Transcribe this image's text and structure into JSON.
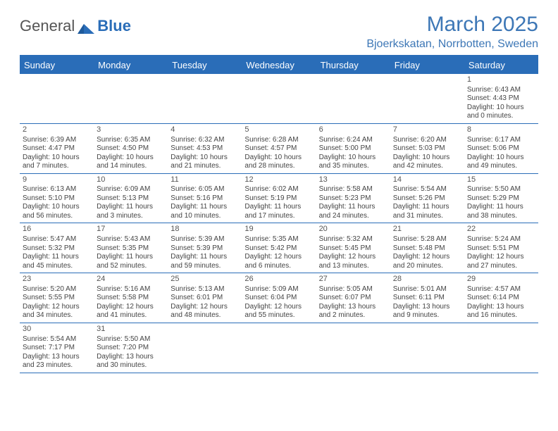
{
  "logo": {
    "part1": "General",
    "part2": "Blue"
  },
  "title": {
    "month": "March 2025",
    "location": "Bjoerkskatan, Norrbotten, Sweden"
  },
  "colors": {
    "brand": "#2a6db8",
    "text": "#444444",
    "bg": "#ffffff"
  },
  "calendar": {
    "columns": [
      "Sunday",
      "Monday",
      "Tuesday",
      "Wednesday",
      "Thursday",
      "Friday",
      "Saturday"
    ],
    "fontsize_header": 13,
    "fontsize_cell": 10,
    "weeks": [
      [
        null,
        null,
        null,
        null,
        null,
        null,
        {
          "n": "1",
          "sr": "Sunrise: 6:43 AM",
          "ss": "Sunset: 4:43 PM",
          "d1": "Daylight: 10 hours",
          "d2": "and 0 minutes."
        }
      ],
      [
        {
          "n": "2",
          "sr": "Sunrise: 6:39 AM",
          "ss": "Sunset: 4:47 PM",
          "d1": "Daylight: 10 hours",
          "d2": "and 7 minutes."
        },
        {
          "n": "3",
          "sr": "Sunrise: 6:35 AM",
          "ss": "Sunset: 4:50 PM",
          "d1": "Daylight: 10 hours",
          "d2": "and 14 minutes."
        },
        {
          "n": "4",
          "sr": "Sunrise: 6:32 AM",
          "ss": "Sunset: 4:53 PM",
          "d1": "Daylight: 10 hours",
          "d2": "and 21 minutes."
        },
        {
          "n": "5",
          "sr": "Sunrise: 6:28 AM",
          "ss": "Sunset: 4:57 PM",
          "d1": "Daylight: 10 hours",
          "d2": "and 28 minutes."
        },
        {
          "n": "6",
          "sr": "Sunrise: 6:24 AM",
          "ss": "Sunset: 5:00 PM",
          "d1": "Daylight: 10 hours",
          "d2": "and 35 minutes."
        },
        {
          "n": "7",
          "sr": "Sunrise: 6:20 AM",
          "ss": "Sunset: 5:03 PM",
          "d1": "Daylight: 10 hours",
          "d2": "and 42 minutes."
        },
        {
          "n": "8",
          "sr": "Sunrise: 6:17 AM",
          "ss": "Sunset: 5:06 PM",
          "d1": "Daylight: 10 hours",
          "d2": "and 49 minutes."
        }
      ],
      [
        {
          "n": "9",
          "sr": "Sunrise: 6:13 AM",
          "ss": "Sunset: 5:10 PM",
          "d1": "Daylight: 10 hours",
          "d2": "and 56 minutes."
        },
        {
          "n": "10",
          "sr": "Sunrise: 6:09 AM",
          "ss": "Sunset: 5:13 PM",
          "d1": "Daylight: 11 hours",
          "d2": "and 3 minutes."
        },
        {
          "n": "11",
          "sr": "Sunrise: 6:05 AM",
          "ss": "Sunset: 5:16 PM",
          "d1": "Daylight: 11 hours",
          "d2": "and 10 minutes."
        },
        {
          "n": "12",
          "sr": "Sunrise: 6:02 AM",
          "ss": "Sunset: 5:19 PM",
          "d1": "Daylight: 11 hours",
          "d2": "and 17 minutes."
        },
        {
          "n": "13",
          "sr": "Sunrise: 5:58 AM",
          "ss": "Sunset: 5:23 PM",
          "d1": "Daylight: 11 hours",
          "d2": "and 24 minutes."
        },
        {
          "n": "14",
          "sr": "Sunrise: 5:54 AM",
          "ss": "Sunset: 5:26 PM",
          "d1": "Daylight: 11 hours",
          "d2": "and 31 minutes."
        },
        {
          "n": "15",
          "sr": "Sunrise: 5:50 AM",
          "ss": "Sunset: 5:29 PM",
          "d1": "Daylight: 11 hours",
          "d2": "and 38 minutes."
        }
      ],
      [
        {
          "n": "16",
          "sr": "Sunrise: 5:47 AM",
          "ss": "Sunset: 5:32 PM",
          "d1": "Daylight: 11 hours",
          "d2": "and 45 minutes."
        },
        {
          "n": "17",
          "sr": "Sunrise: 5:43 AM",
          "ss": "Sunset: 5:35 PM",
          "d1": "Daylight: 11 hours",
          "d2": "and 52 minutes."
        },
        {
          "n": "18",
          "sr": "Sunrise: 5:39 AM",
          "ss": "Sunset: 5:39 PM",
          "d1": "Daylight: 11 hours",
          "d2": "and 59 minutes."
        },
        {
          "n": "19",
          "sr": "Sunrise: 5:35 AM",
          "ss": "Sunset: 5:42 PM",
          "d1": "Daylight: 12 hours",
          "d2": "and 6 minutes."
        },
        {
          "n": "20",
          "sr": "Sunrise: 5:32 AM",
          "ss": "Sunset: 5:45 PM",
          "d1": "Daylight: 12 hours",
          "d2": "and 13 minutes."
        },
        {
          "n": "21",
          "sr": "Sunrise: 5:28 AM",
          "ss": "Sunset: 5:48 PM",
          "d1": "Daylight: 12 hours",
          "d2": "and 20 minutes."
        },
        {
          "n": "22",
          "sr": "Sunrise: 5:24 AM",
          "ss": "Sunset: 5:51 PM",
          "d1": "Daylight: 12 hours",
          "d2": "and 27 minutes."
        }
      ],
      [
        {
          "n": "23",
          "sr": "Sunrise: 5:20 AM",
          "ss": "Sunset: 5:55 PM",
          "d1": "Daylight: 12 hours",
          "d2": "and 34 minutes."
        },
        {
          "n": "24",
          "sr": "Sunrise: 5:16 AM",
          "ss": "Sunset: 5:58 PM",
          "d1": "Daylight: 12 hours",
          "d2": "and 41 minutes."
        },
        {
          "n": "25",
          "sr": "Sunrise: 5:13 AM",
          "ss": "Sunset: 6:01 PM",
          "d1": "Daylight: 12 hours",
          "d2": "and 48 minutes."
        },
        {
          "n": "26",
          "sr": "Sunrise: 5:09 AM",
          "ss": "Sunset: 6:04 PM",
          "d1": "Daylight: 12 hours",
          "d2": "and 55 minutes."
        },
        {
          "n": "27",
          "sr": "Sunrise: 5:05 AM",
          "ss": "Sunset: 6:07 PM",
          "d1": "Daylight: 13 hours",
          "d2": "and 2 minutes."
        },
        {
          "n": "28",
          "sr": "Sunrise: 5:01 AM",
          "ss": "Sunset: 6:11 PM",
          "d1": "Daylight: 13 hours",
          "d2": "and 9 minutes."
        },
        {
          "n": "29",
          "sr": "Sunrise: 4:57 AM",
          "ss": "Sunset: 6:14 PM",
          "d1": "Daylight: 13 hours",
          "d2": "and 16 minutes."
        }
      ],
      [
        {
          "n": "30",
          "sr": "Sunrise: 5:54 AM",
          "ss": "Sunset: 7:17 PM",
          "d1": "Daylight: 13 hours",
          "d2": "and 23 minutes."
        },
        {
          "n": "31",
          "sr": "Sunrise: 5:50 AM",
          "ss": "Sunset: 7:20 PM",
          "d1": "Daylight: 13 hours",
          "d2": "and 30 minutes."
        },
        null,
        null,
        null,
        null,
        null
      ]
    ]
  }
}
